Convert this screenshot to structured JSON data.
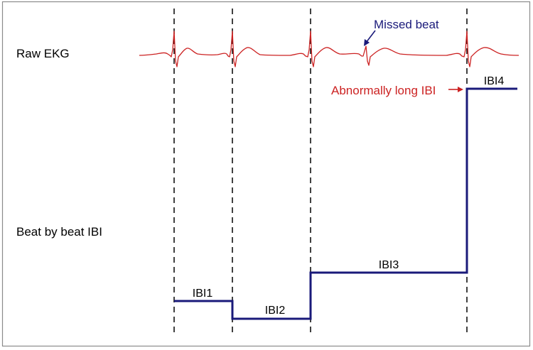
{
  "labels": {
    "raw_ekg": "Raw EKG",
    "beat_ibi": "Beat by beat IBI",
    "missed_beat": "Missed beat",
    "abnormal": "Abnormally long IBI",
    "ibi1": "IBI1",
    "ibi2": "IBI2",
    "ibi3": "IBI3",
    "ibi4": "IBI4"
  },
  "colors": {
    "ekg": "#cc2222",
    "ibi": "#1a1a7a",
    "missed": "#1a1a7a",
    "abnormal": "#cc2222",
    "text": "#000000",
    "frame": "#888888",
    "dashed": "#000000"
  }
}
